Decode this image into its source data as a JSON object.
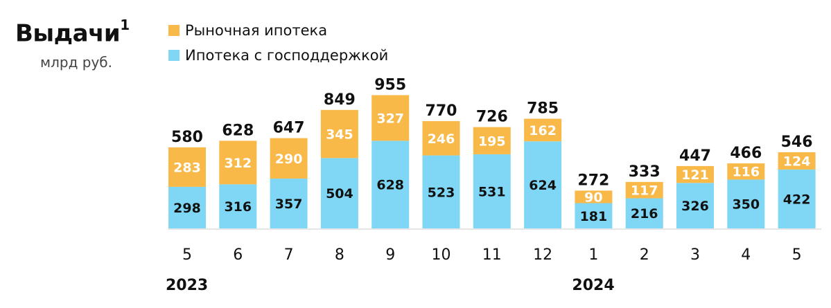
{
  "title": "Выдачи",
  "title_footnote": "1",
  "units": "млрд руб.",
  "legend": {
    "market": "Рыночная ипотека",
    "state": "Ипотека с господдержкой"
  },
  "colors": {
    "market": "#F9B949",
    "state": "#7FD7F5",
    "axis": "#CCCCCC"
  },
  "chart_data": {
    "type": "bar",
    "stacked": true,
    "categories": [
      "5",
      "6",
      "7",
      "8",
      "9",
      "10",
      "11",
      "12",
      "1",
      "2",
      "3",
      "4",
      "5"
    ],
    "year_labels": [
      {
        "label": "2023",
        "first_category_index": 0
      },
      {
        "label": "2024",
        "first_category_index": 8
      }
    ],
    "series": [
      {
        "name": "Ипотека с господдержкой",
        "values": [
          298,
          316,
          357,
          504,
          628,
          523,
          531,
          624,
          181,
          216,
          326,
          350,
          422
        ]
      },
      {
        "name": "Рыночная ипотека",
        "values": [
          283,
          312,
          290,
          345,
          327,
          246,
          195,
          162,
          90,
          117,
          121,
          116,
          124
        ]
      }
    ],
    "totals": [
      580,
      628,
      647,
      849,
      955,
      770,
      726,
      785,
      272,
      333,
      447,
      466,
      546
    ],
    "ylim": [
      0,
      955
    ],
    "grid": false,
    "legend_position": "top-left"
  }
}
